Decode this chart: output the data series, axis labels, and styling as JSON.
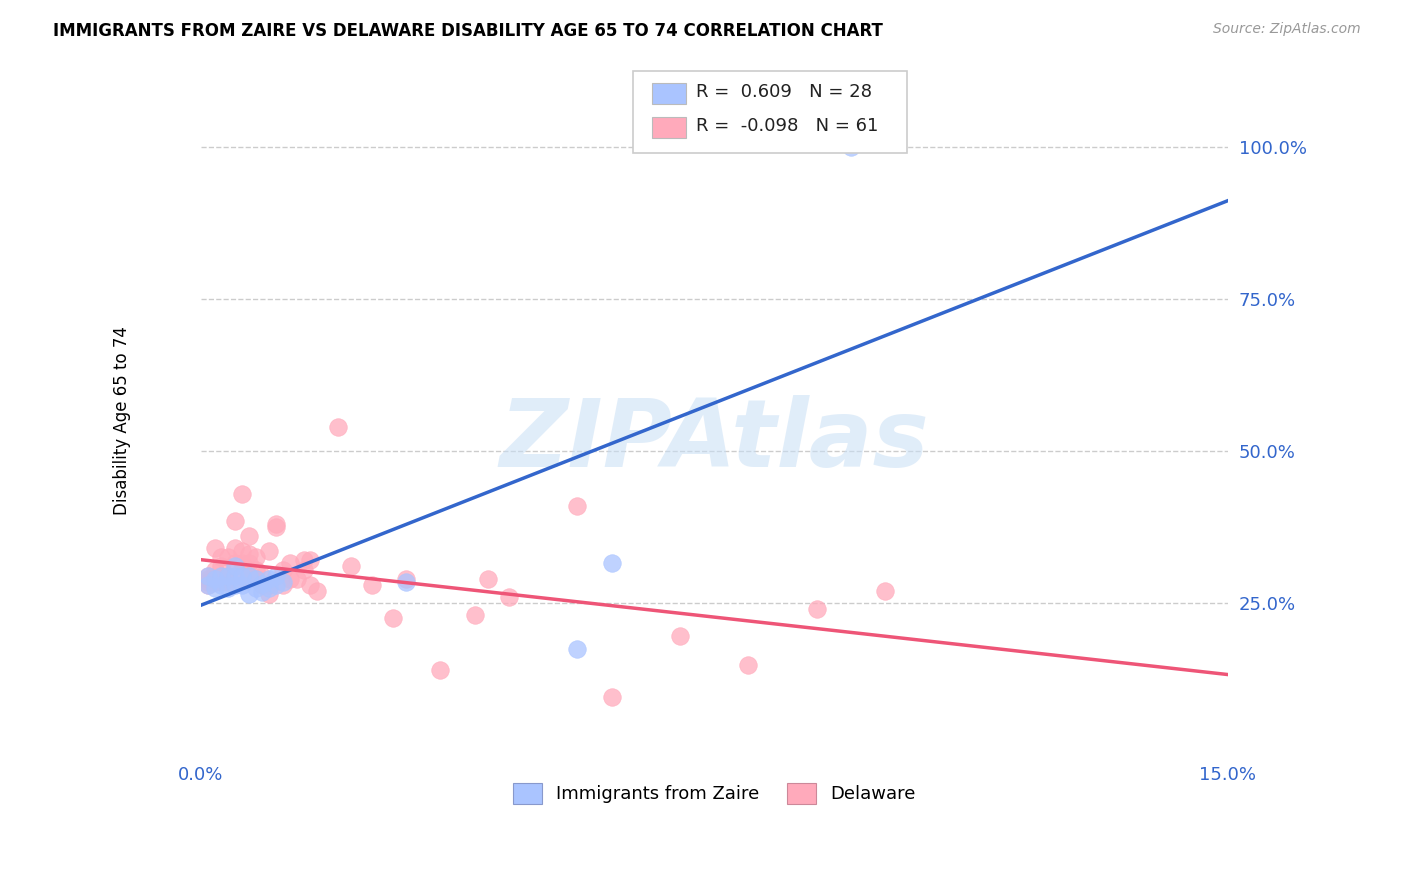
{
  "title": "IMMIGRANTS FROM ZAIRE VS DELAWARE DISABILITY AGE 65 TO 74 CORRELATION CHART",
  "source": "Source: ZipAtlas.com",
  "ylabel": "Disability Age 65 to 74",
  "legend_labels": [
    "Immigrants from Zaire",
    "Delaware"
  ],
  "legend_R": [
    "0.609",
    "-0.098"
  ],
  "legend_N": [
    "28",
    "61"
  ],
  "xlim": [
    0.0,
    0.15
  ],
  "ylim": [
    0.0,
    1.1
  ],
  "ytick_values": [
    0.25,
    0.5,
    0.75,
    1.0
  ],
  "ytick_labels": [
    "25.0%",
    "50.0%",
    "75.0%",
    "100.0%"
  ],
  "xtick_values": [
    0.0,
    0.15
  ],
  "xtick_labels": [
    "0.0%",
    "15.0%"
  ],
  "grid_color": "#cccccc",
  "blue_fill": "#aac4ff",
  "pink_fill": "#ffaabb",
  "blue_line_color": "#3366cc",
  "pink_line_color": "#ee5577",
  "watermark_color": "#c8dff5",
  "blue_scatter_x": [
    0.001,
    0.001,
    0.002,
    0.002,
    0.003,
    0.003,
    0.004,
    0.004,
    0.005,
    0.005,
    0.005,
    0.006,
    0.006,
    0.007,
    0.007,
    0.008,
    0.008,
    0.009,
    0.009,
    0.01,
    0.01,
    0.011,
    0.011,
    0.012,
    0.03,
    0.055,
    0.06,
    0.095
  ],
  "blue_scatter_y": [
    0.28,
    0.295,
    0.275,
    0.29,
    0.28,
    0.295,
    0.275,
    0.295,
    0.28,
    0.295,
    0.31,
    0.28,
    0.295,
    0.265,
    0.295,
    0.275,
    0.29,
    0.268,
    0.282,
    0.275,
    0.29,
    0.28,
    0.295,
    0.285,
    0.285,
    0.175,
    0.315,
    1.0
  ],
  "pink_scatter_x": [
    0.001,
    0.001,
    0.001,
    0.001,
    0.002,
    0.002,
    0.002,
    0.003,
    0.003,
    0.003,
    0.003,
    0.004,
    0.004,
    0.004,
    0.004,
    0.005,
    0.005,
    0.005,
    0.006,
    0.006,
    0.006,
    0.006,
    0.007,
    0.007,
    0.007,
    0.007,
    0.008,
    0.008,
    0.008,
    0.009,
    0.009,
    0.01,
    0.01,
    0.01,
    0.011,
    0.011,
    0.012,
    0.012,
    0.013,
    0.013,
    0.014,
    0.015,
    0.015,
    0.016,
    0.016,
    0.017,
    0.02,
    0.022,
    0.025,
    0.028,
    0.03,
    0.035,
    0.04,
    0.042,
    0.045,
    0.055,
    0.06,
    0.07,
    0.08,
    0.09,
    0.1
  ],
  "pink_scatter_y": [
    0.28,
    0.285,
    0.29,
    0.295,
    0.285,
    0.305,
    0.34,
    0.285,
    0.295,
    0.31,
    0.325,
    0.285,
    0.29,
    0.295,
    0.325,
    0.315,
    0.34,
    0.385,
    0.29,
    0.315,
    0.335,
    0.43,
    0.295,
    0.315,
    0.33,
    0.36,
    0.29,
    0.305,
    0.325,
    0.28,
    0.295,
    0.265,
    0.28,
    0.335,
    0.375,
    0.38,
    0.28,
    0.305,
    0.29,
    0.315,
    0.29,
    0.305,
    0.32,
    0.28,
    0.32,
    0.27,
    0.54,
    0.31,
    0.28,
    0.225,
    0.29,
    0.14,
    0.23,
    0.29,
    0.26,
    0.41,
    0.095,
    0.195,
    0.148,
    0.24,
    0.27
  ]
}
